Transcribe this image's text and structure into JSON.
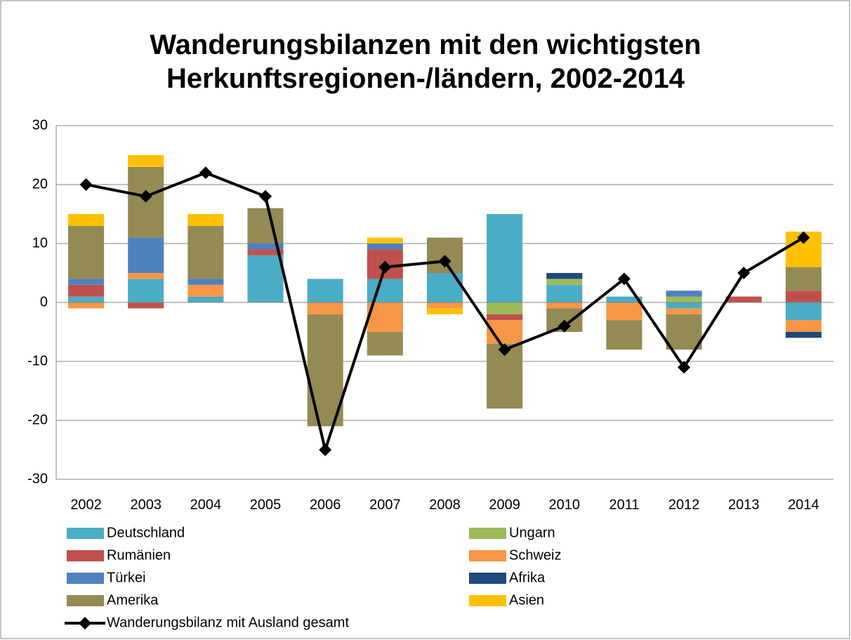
{
  "chart_data": {
    "type": "bar",
    "title": "Wanderungsbilanzen mit den wichtigsten Herkunftsregionen-/ländern, 2002-2014",
    "categories": [
      "2002",
      "2003",
      "2004",
      "2005",
      "2006",
      "2007",
      "2008",
      "2009",
      "2010",
      "2011",
      "2012",
      "2013",
      "2014"
    ],
    "ylim": [
      -30,
      30
    ],
    "yticks": [
      -30,
      -20,
      -10,
      0,
      10,
      20,
      30
    ],
    "grid": true,
    "stacked": true,
    "legend": "bottom",
    "series": [
      {
        "name": "Deutschland",
        "color": "#4bacc6",
        "values": [
          1,
          4,
          1,
          8,
          4,
          4,
          5,
          15,
          3,
          1,
          -1,
          0,
          -3
        ]
      },
      {
        "name": "Ungarn",
        "color": "#9bbb59",
        "values": [
          0,
          0,
          0,
          0,
          0,
          0,
          0,
          -2,
          1,
          0,
          1,
          0,
          0
        ]
      },
      {
        "name": "Rumänien",
        "color": "#c0504d",
        "values": [
          2,
          -1,
          0,
          1,
          0,
          5,
          0,
          -1,
          0,
          0,
          0,
          1,
          2
        ]
      },
      {
        "name": "Schweiz",
        "color": "#f79646",
        "values": [
          -1,
          1,
          2,
          0,
          -2,
          -5,
          -1,
          -4,
          -1,
          -3,
          -1,
          0,
          -2
        ]
      },
      {
        "name": "Türkei",
        "color": "#4f81bd",
        "values": [
          1,
          6,
          1,
          1,
          0,
          1,
          0,
          0,
          0,
          0,
          1,
          0,
          0
        ]
      },
      {
        "name": "Afrika",
        "color": "#1f497d",
        "values": [
          0,
          0,
          0,
          0,
          0,
          0,
          0,
          0,
          1,
          0,
          0,
          0,
          -1
        ]
      },
      {
        "name": "Amerika",
        "color": "#948a54",
        "values": [
          9,
          12,
          9,
          6,
          -19,
          -4,
          6,
          -11,
          -4,
          -5,
          -6,
          0,
          4
        ]
      },
      {
        "name": "Asien",
        "color": "#ffc000",
        "values": [
          2,
          2,
          2,
          0,
          0,
          1,
          -1,
          0,
          0,
          0,
          0,
          0,
          6
        ]
      },
      {
        "name": "Wanderungsbilanz mit Ausland gesamt",
        "type": "line",
        "color": "#000000",
        "values": [
          20,
          18,
          22,
          18,
          -25,
          6,
          7,
          -8,
          -4,
          4,
          -11,
          5,
          11
        ]
      }
    ]
  }
}
